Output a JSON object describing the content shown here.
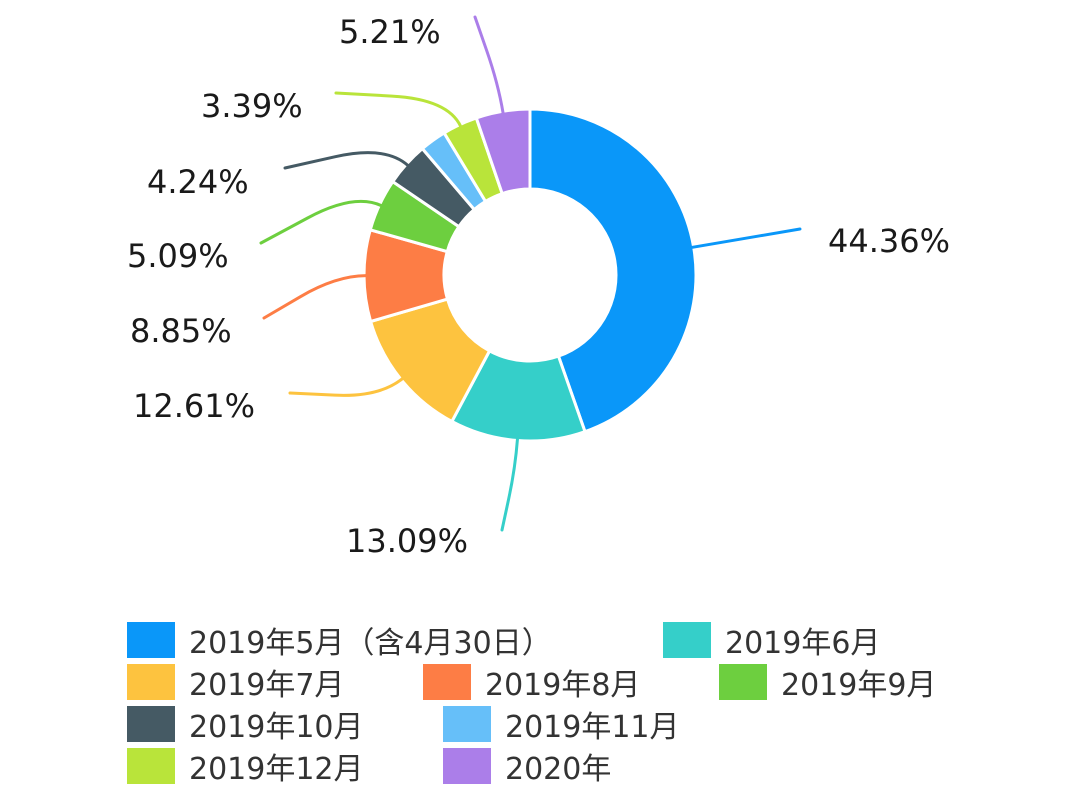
{
  "chart_data": {
    "type": "pie",
    "variant": "donut",
    "categories": [
      "2019年5月（含4月30日）",
      "2019年6月",
      "2019年7月",
      "2019年8月",
      "2019年9月",
      "2019年10月",
      "2019年11月",
      "2019年12月",
      "2020年"
    ],
    "values": [
      44.36,
      13.09,
      12.61,
      8.85,
      5.09,
      4.24,
      2.56,
      3.39,
      5.21
    ],
    "data_labels": [
      "44.36%",
      "13.09%",
      "12.61%",
      "8.85%",
      "5.09%",
      "4.24%",
      "",
      "3.39%",
      "5.21%"
    ],
    "colors": [
      "#0a97f9",
      "#35cfc9",
      "#fdc33f",
      "#fd7d45",
      "#6dcf3f",
      "#455a64",
      "#66bff9",
      "#b9e43a",
      "#ab7ee9"
    ],
    "title": "",
    "legend_position": "bottom"
  }
}
